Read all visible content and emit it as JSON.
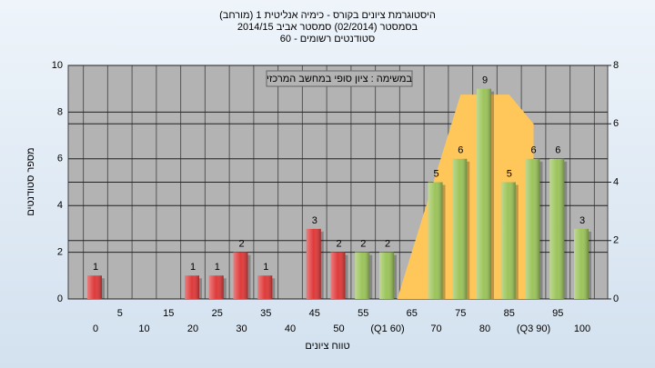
{
  "chart_data": {
    "type": "bar",
    "title_lines": [
      "(היסטוגרמת ציונים בקורס - כימיה אנליטית 1 (מורחב",
      "בסמסטר  (02/2014)  סמסטר אביב 2014/15",
      "סטודנטים רשומים - 60"
    ],
    "annotation": "במשימה : ציון סופי במחשב המרכזי",
    "y_label": "מספר סטודנטים",
    "x_label": "טווח ציונים",
    "categories": [
      "0",
      "5",
      "10",
      "15",
      "20",
      "25",
      "30",
      "35",
      "40",
      "45",
      "50",
      "55",
      "(Q1 60)",
      "65",
      "70",
      "75",
      "80",
      "85",
      "(Q3 90)",
      "95",
      "100"
    ],
    "xlim": [
      0,
      100
    ],
    "values": [
      1,
      null,
      null,
      null,
      1,
      1,
      2,
      1,
      null,
      3,
      2,
      2,
      2,
      null,
      5,
      6,
      9,
      5,
      6,
      6,
      3
    ],
    "bar_colors": [
      "#e03a3a",
      "#e03a3a",
      "#e03a3a",
      "#e03a3a",
      "#e03a3a",
      "#e03a3a",
      "#e03a3a",
      "#e03a3a",
      "#e03a3a",
      "#e03a3a",
      "#e03a3a",
      "#9cc45a",
      "#9cc45a",
      "#9cc45a",
      "#9cc45a",
      "#9cc45a",
      "#9cc45a",
      "#9cc45a",
      "#9cc45a",
      "#9cc45a",
      "#9cc45a"
    ],
    "ylim": [
      0,
      10
    ],
    "yticks": [
      0,
      2,
      4,
      6,
      8,
      10
    ],
    "y2lim": [
      0,
      8
    ],
    "y2ticks": [
      0,
      2,
      4,
      6,
      8
    ],
    "area": {
      "type": "area",
      "axis": "y2",
      "color": "#ffc65a",
      "x": [
        62,
        75,
        85,
        90,
        90
      ],
      "values": [
        0,
        7,
        7,
        6,
        0
      ]
    },
    "grid": true
  }
}
